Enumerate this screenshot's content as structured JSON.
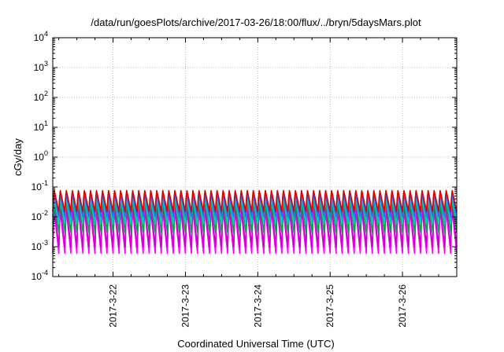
{
  "chart_data": {
    "type": "line",
    "title": "/data/run/goesPlots/archive/2017-03-26/18:00/flux/../bryn/5daysMars.plot",
    "xlabel": "Coordinated Universal Time (UTC)",
    "ylabel": "cGy/day",
    "yscale": "log",
    "ylim": [
      0.0001,
      10000
    ],
    "xlim": [
      "2017-03-21T04:00",
      "2017-03-26T18:00"
    ],
    "x_ticks": [
      "2017-3-22",
      "2017-3-23",
      "2017-3-24",
      "2017-3-25",
      "2017-3-26"
    ],
    "y_ticks": [
      {
        "base": "10",
        "exp": "-4"
      },
      {
        "base": "10",
        "exp": "-3"
      },
      {
        "base": "10",
        "exp": "-2"
      },
      {
        "base": "10",
        "exp": "-1"
      },
      {
        "base": "10",
        "exp": "0"
      },
      {
        "base": "10",
        "exp": "1"
      },
      {
        "base": "10",
        "exp": "2"
      },
      {
        "base": "10",
        "exp": "3"
      },
      {
        "base": "10",
        "exp": "4"
      }
    ],
    "grid": true,
    "oscillation_period_hours": 2,
    "series": [
      {
        "color": "#ff00ff",
        "peak": 0.02,
        "trough": 0.0006
      },
      {
        "color": "#cc00cc",
        "peak": 0.03,
        "trough": 0.001
      },
      {
        "color": "#00aa44",
        "peak": 0.04,
        "trough": 0.003
      },
      {
        "color": "#00cccc",
        "peak": 0.05,
        "trough": 0.006
      },
      {
        "color": "#3366ff",
        "peak": 0.065,
        "trough": 0.01
      },
      {
        "color": "#dd0000",
        "peak": 0.085,
        "trough": 0.015
      }
    ]
  }
}
